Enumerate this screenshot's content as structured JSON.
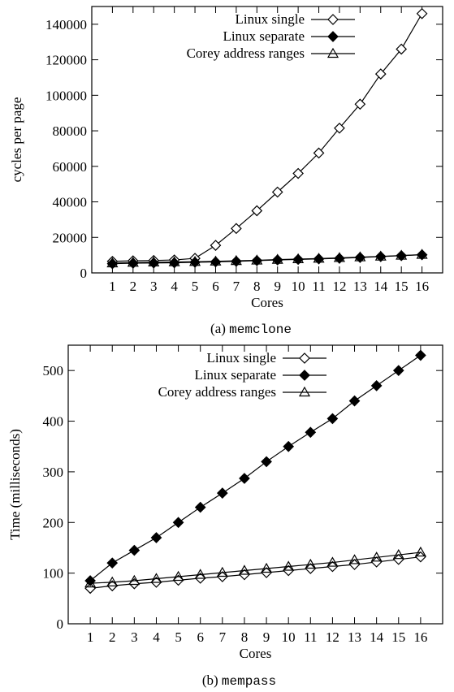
{
  "chart_data": [
    {
      "type": "line",
      "caption_prefix": "(a) ",
      "caption_code": "memclone",
      "xlabel": "Cores",
      "ylabel": "cycles per page",
      "x": [
        1,
        2,
        3,
        4,
        5,
        6,
        7,
        8,
        9,
        10,
        11,
        12,
        13,
        14,
        15,
        16
      ],
      "xticks": [
        "1",
        "2",
        "3",
        "4",
        "5",
        "6",
        "7",
        "8",
        "9",
        "10",
        "11",
        "12",
        "13",
        "14",
        "15",
        "16"
      ],
      "xlim": [
        0,
        17
      ],
      "ylim": [
        0,
        150000
      ],
      "yticks": [
        0,
        20000,
        40000,
        60000,
        80000,
        100000,
        120000,
        140000
      ],
      "yticklabels": [
        "0",
        "20000",
        "40000",
        "60000",
        "80000",
        "100000",
        "120000",
        "140000"
      ],
      "legend_position": "top-right",
      "series": [
        {
          "name": "Linux single",
          "marker": "diamond-open",
          "values": [
            6500,
            6800,
            7000,
            7300,
            8200,
            15500,
            25000,
            35000,
            45500,
            56000,
            67500,
            81500,
            95000,
            112000,
            126000,
            146000
          ]
        },
        {
          "name": "Linux separate",
          "marker": "diamond-filled",
          "values": [
            5200,
            5500,
            5600,
            5700,
            6000,
            6200,
            6500,
            6900,
            7300,
            7600,
            7900,
            8200,
            8700,
            9200,
            9700,
            10200
          ]
        },
        {
          "name": "Corey address ranges",
          "marker": "triangle-open",
          "values": [
            5500,
            5800,
            6000,
            6100,
            6300,
            6500,
            6800,
            7100,
            7500,
            7800,
            8100,
            8500,
            8900,
            9300,
            9800,
            10300
          ]
        }
      ]
    },
    {
      "type": "line",
      "caption_prefix": "(b) ",
      "caption_code": "mempass",
      "xlabel": "Cores",
      "ylabel": "Time (milliseconds)",
      "x": [
        1,
        2,
        3,
        4,
        5,
        6,
        7,
        8,
        9,
        10,
        11,
        12,
        13,
        14,
        15,
        16
      ],
      "xticks": [
        "1",
        "2",
        "3",
        "4",
        "5",
        "6",
        "7",
        "8",
        "9",
        "10",
        "11",
        "12",
        "13",
        "14",
        "15",
        "16"
      ],
      "xlim": [
        0,
        17
      ],
      "ylim": [
        0,
        550
      ],
      "yticks": [
        0,
        100,
        200,
        300,
        400,
        500
      ],
      "yticklabels": [
        "0",
        "100",
        "200",
        "300",
        "400",
        "500"
      ],
      "legend_position": "top-left",
      "series": [
        {
          "name": "Linux single",
          "marker": "diamond-open",
          "values": [
            70,
            75,
            79,
            82,
            86,
            90,
            93,
            97,
            101,
            105,
            109,
            113,
            117,
            122,
            127,
            132
          ]
        },
        {
          "name": "Linux separate",
          "marker": "diamond-filled",
          "values": [
            85,
            120,
            145,
            170,
            200,
            230,
            258,
            287,
            320,
            350,
            378,
            405,
            440,
            470,
            500,
            530
          ]
        },
        {
          "name": "Corey address ranges",
          "marker": "triangle-open",
          "values": [
            80,
            82,
            85,
            89,
            93,
            97,
            101,
            105,
            109,
            113,
            117,
            121,
            126,
            131,
            136,
            141
          ]
        }
      ]
    }
  ]
}
